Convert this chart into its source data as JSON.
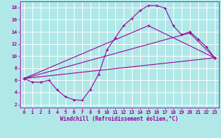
{
  "xlabel": "Windchill (Refroidissement éolien,°C)",
  "bg_color": "#b0e8e8",
  "grid_color": "#ffffff",
  "line_color": "#990099",
  "xlim": [
    -0.5,
    23.5
  ],
  "ylim": [
    1.5,
    19.0
  ],
  "xticks": [
    0,
    1,
    2,
    3,
    4,
    5,
    6,
    7,
    8,
    9,
    10,
    11,
    12,
    13,
    14,
    15,
    16,
    17,
    18,
    19,
    20,
    21,
    22,
    23
  ],
  "yticks": [
    2,
    4,
    6,
    8,
    10,
    12,
    14,
    16,
    18
  ],
  "line1_x": [
    0,
    1,
    2,
    3,
    4,
    5,
    6,
    7,
    8,
    9,
    10,
    11,
    12,
    13,
    14,
    15,
    16,
    17,
    18,
    19,
    20,
    21,
    22,
    23
  ],
  "line1_y": [
    6.3,
    5.7,
    5.7,
    6.0,
    4.4,
    3.3,
    2.8,
    2.7,
    4.5,
    7.0,
    11.0,
    13.0,
    15.0,
    16.2,
    17.5,
    18.3,
    18.3,
    17.9,
    15.0,
    13.5,
    14.0,
    12.8,
    11.5,
    9.7
  ],
  "line2_x": [
    0,
    23
  ],
  "line2_y": [
    6.3,
    9.7
  ],
  "line3_x": [
    0,
    20,
    23
  ],
  "line3_y": [
    6.3,
    13.8,
    9.7
  ],
  "line4_x": [
    0,
    15,
    23
  ],
  "line4_y": [
    6.3,
    15.0,
    9.7
  ]
}
